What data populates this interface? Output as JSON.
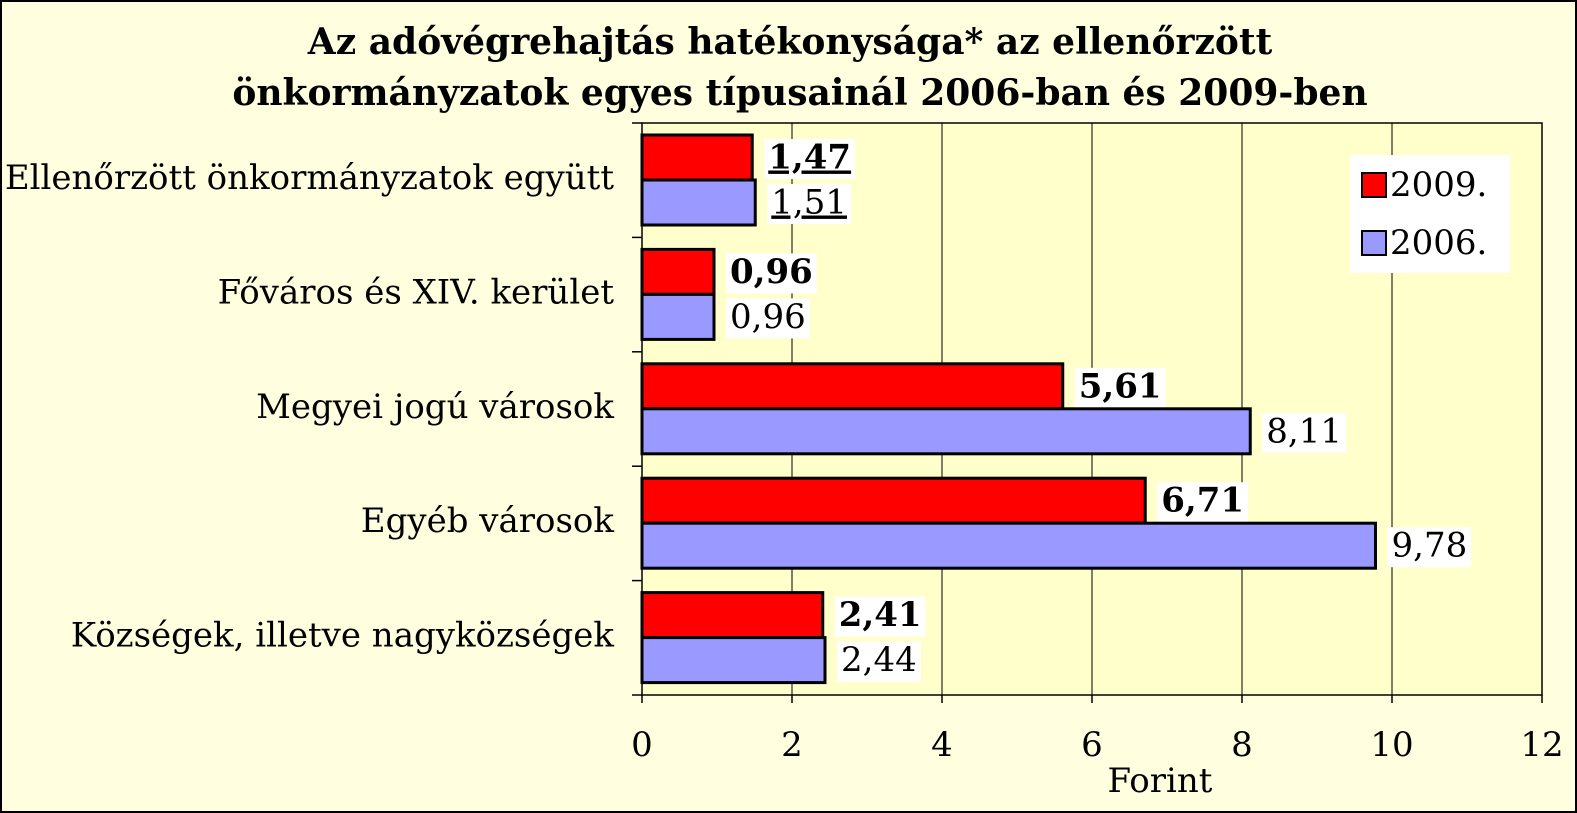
{
  "chart_data": {
    "type": "bar",
    "orientation": "horizontal",
    "title": [
      "Az adóvégrehajtás hatékonysága* az ellenőrzött",
      "önkormányzatok egyes típusainál 2006-ban és 2009-ben"
    ],
    "xlabel": "Forint",
    "categories": [
      "Ellenőrzött önkormányzatok együtt",
      "Főváros és XIV. kerület",
      "Megyei jogú városok",
      "Egyéb városok",
      "Községek, illetve nagyközségek"
    ],
    "series": [
      {
        "name": "2009.",
        "color": "#ff0000",
        "values": [
          1.47,
          0.96,
          5.61,
          6.71,
          2.41
        ],
        "value_labels": [
          "1,47",
          "0,96",
          "5,61",
          "6,71",
          "2,41"
        ]
      },
      {
        "name": "2006.",
        "color": "#9999ff",
        "values": [
          1.51,
          0.96,
          8.11,
          9.78,
          2.44
        ],
        "value_labels": [
          "1,51",
          "0,96",
          "8,11",
          "9,78",
          "2,44"
        ]
      }
    ],
    "xlim": [
      0,
      12
    ],
    "xticks": [
      0,
      2,
      4,
      6,
      8,
      10,
      12
    ],
    "grid": true,
    "legend": "upper right"
  }
}
